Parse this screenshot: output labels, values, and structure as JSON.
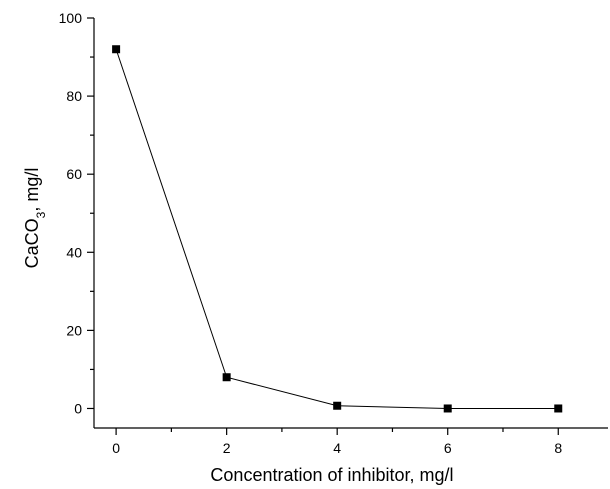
{
  "chart_data": {
    "type": "line",
    "title": "",
    "xlabel": "Concentration of inhibitor, mg/l",
    "ylabel": "CaCO₃, mg/l",
    "ylabel_parts": {
      "main": "CaCO",
      "sub": "3",
      "rest": ", mg/l"
    },
    "xlim": [
      -0.4,
      8.9
    ],
    "ylim": [
      -5,
      100
    ],
    "xticks": [
      0,
      2,
      4,
      6,
      8
    ],
    "yticks": [
      0,
      20,
      40,
      60,
      80,
      100
    ],
    "grid": false,
    "legend": "none",
    "series": [
      {
        "x": [
          0,
          2,
          4,
          6,
          8
        ],
        "y": [
          92,
          8,
          0.7,
          0,
          0
        ],
        "color": "#000000",
        "marker": "square"
      }
    ]
  }
}
